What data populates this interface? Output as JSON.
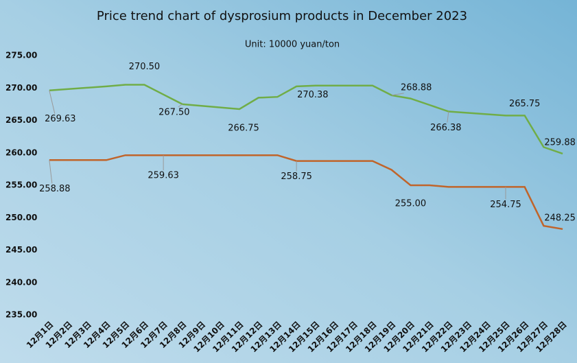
{
  "chart_data": {
    "type": "line",
    "title": "Price trend chart of dysprosium products in December 2023",
    "subtitle": "Unit: 10000 yuan/ton",
    "categories": [
      "12月1日",
      "12月2日",
      "12月3日",
      "12月4日",
      "12月5日",
      "12月6日",
      "12月7日",
      "12月8日",
      "12月9日",
      "12月10日",
      "12月11日",
      "12月12日",
      "12月13日",
      "12月14日",
      "12月15日",
      "12月16日",
      "12月17日",
      "12月18日",
      "12月19日",
      "12月20日",
      "12月21日",
      "12月22日",
      "12月23日",
      "12月24日",
      "12月25日",
      "12月26日",
      "12月27日",
      "12月28日"
    ],
    "series": [
      {
        "color": "#70ad47",
        "values": [
          269.63,
          null,
          null,
          270.25,
          270.5,
          270.5,
          269,
          267.5,
          null,
          null,
          266.75,
          268.5,
          268.63,
          270.25,
          270.38,
          null,
          null,
          270.38,
          268.88,
          268.38,
          267.38,
          266.38,
          null,
          null,
          265.75,
          265.75,
          260.88,
          259.88
        ],
        "value_labels": [
          "269.63",
          null,
          null,
          null,
          null,
          "270.50",
          null,
          "267.50",
          null,
          null,
          "266.75",
          null,
          null,
          null,
          "270.38",
          null,
          null,
          null,
          "268.88",
          null,
          null,
          "266.38",
          null,
          null,
          null,
          "265.75",
          null,
          "259.88"
        ]
      },
      {
        "color": "#c0642a",
        "values": [
          258.88,
          null,
          null,
          258.88,
          259.63,
          259.63,
          259.63,
          259.63,
          null,
          null,
          259.63,
          259.63,
          259.63,
          258.75,
          258.75,
          null,
          null,
          258.75,
          257.38,
          255,
          255,
          254.75,
          null,
          null,
          254.75,
          254.75,
          248.75,
          248.25
        ],
        "value_labels": [
          "258.88",
          null,
          null,
          null,
          null,
          null,
          "259.63",
          null,
          null,
          null,
          null,
          null,
          null,
          "258.75",
          null,
          null,
          null,
          null,
          null,
          "255.00",
          null,
          null,
          null,
          null,
          "254.75",
          null,
          null,
          "248.25"
        ]
      }
    ],
    "ylim": [
      235,
      275
    ],
    "yticks": [
      {
        "value": 235,
        "label": "235.00"
      },
      {
        "value": 240,
        "label": "240.00"
      },
      {
        "value": 245,
        "label": "245.00"
      },
      {
        "value": 250,
        "label": "250.00"
      },
      {
        "value": 255,
        "label": "255.00"
      },
      {
        "value": 260,
        "label": "260.00"
      },
      {
        "value": 265,
        "label": "265.00"
      },
      {
        "value": 270,
        "label": "270.00"
      },
      {
        "value": 275,
        "label": "275.00"
      }
    ],
    "grid": false
  }
}
